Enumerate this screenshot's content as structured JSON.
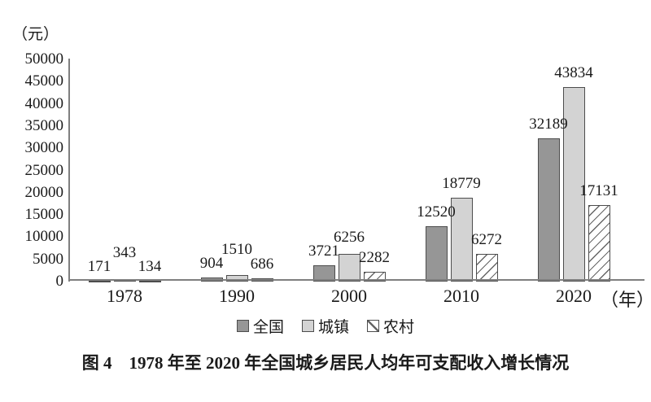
{
  "figure": {
    "unit_label": "（元）",
    "caption": "图 4　1978 年至 2020 年全国城乡居民人均年可支配收入增长情况"
  },
  "chart_data": {
    "type": "bar",
    "title": "图 4　1978 年至 2020 年全国城乡居民人均年可支配收入增长情况",
    "unit": "元",
    "y_axis_unit_label": "（元）",
    "x_axis_suffix": "（年）",
    "categories": [
      "1978",
      "1990",
      "2000",
      "2010",
      "2020"
    ],
    "series": [
      {
        "key": "national",
        "name": "全国",
        "values": [
          171,
          904,
          3721,
          12520,
          32189
        ],
        "fill": "#969696",
        "pattern": "solid"
      },
      {
        "key": "urban",
        "name": "城镇",
        "values": [
          343,
          1510,
          6256,
          18779,
          43834
        ],
        "fill": "#d3d3d3",
        "pattern": "solid"
      },
      {
        "key": "rural",
        "name": "农村",
        "values": [
          134,
          686,
          2282,
          6272,
          17131
        ],
        "fill": "#ffffff",
        "pattern": "hatch"
      }
    ],
    "ylim": [
      0,
      50000
    ],
    "ytick_step": 5000,
    "yticks": [
      0,
      5000,
      10000,
      15000,
      20000,
      25000,
      30000,
      35000,
      40000,
      45000,
      50000
    ],
    "grid": false,
    "legend_position": "bottom",
    "data_labels": true,
    "colors": {
      "axis": "#7f7f7f",
      "text": "#1a1a1a",
      "bar_border": "#4d4d4d",
      "hatch_line": "#666666",
      "background": "#ffffff"
    }
  }
}
